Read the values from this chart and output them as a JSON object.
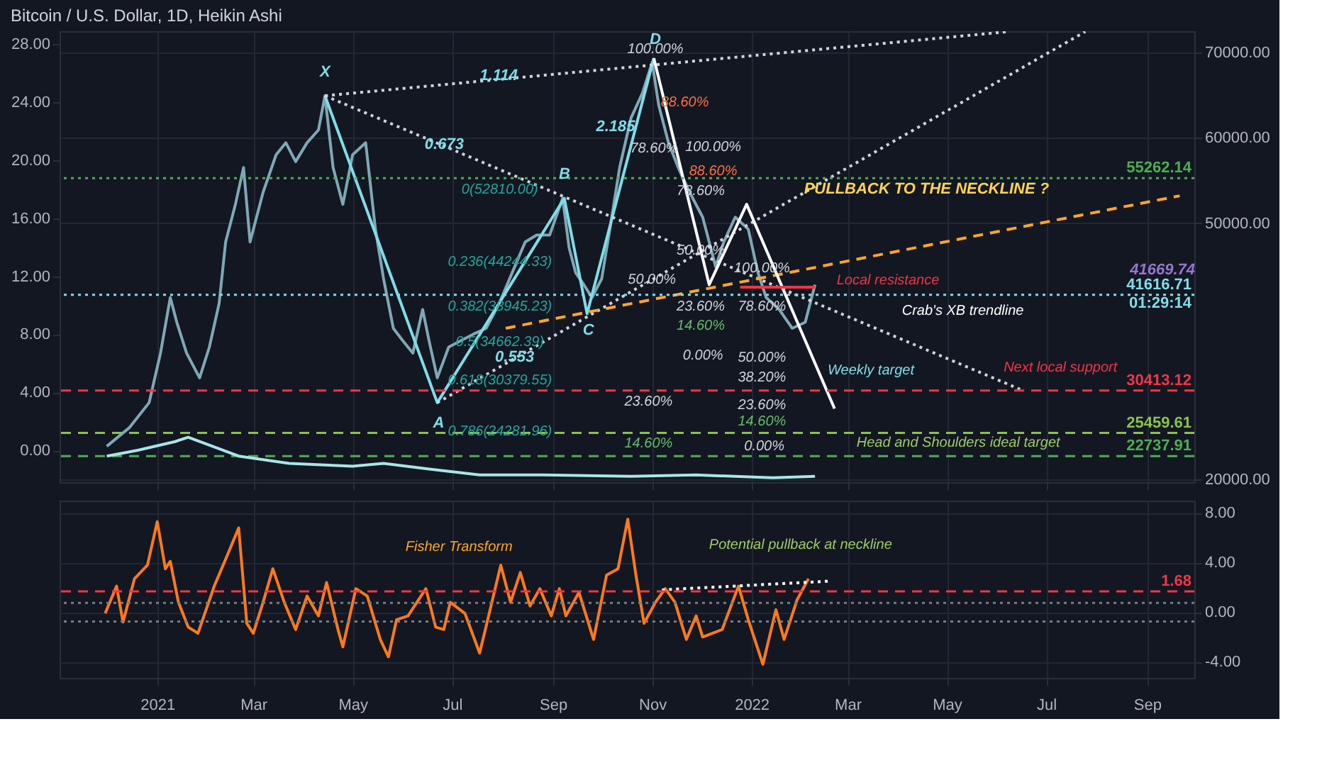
{
  "chart_data": [
    {
      "type": "line",
      "title": "Bitcoin / U.S. Dollar, 1D, Heikin Ashi",
      "grid": true,
      "tick_labels": "y",
      "xlim": [
        "2020-11-02",
        "2022-09-30"
      ],
      "xticks": [
        {
          "value": "2021-01-01",
          "label": null
        },
        {
          "value": "2021-03-01",
          "label": null
        },
        {
          "value": "2021-05-01",
          "label": null
        },
        {
          "value": "2021-07-01",
          "label": null
        },
        {
          "value": "2021-09-01",
          "label": null
        },
        {
          "value": "2021-11-01",
          "label": null
        },
        {
          "value": "2022-01-01",
          "label": null
        },
        {
          "value": "2022-03-01",
          "label": null
        },
        {
          "value": "2022-05-01",
          "label": null
        },
        {
          "value": "2022-07-01",
          "label": null
        },
        {
          "value": "2022-09-01",
          "label": null
        }
      ],
      "ylim": [
        19700,
        72450
      ],
      "yticks": [
        {
          "value": 20000,
          "label": "20000.00"
        },
        {
          "value": 50000,
          "label": "50000.00"
        },
        {
          "value": 60000,
          "label": "60000.00"
        },
        {
          "value": 70000,
          "label": "70000.00"
        }
      ],
      "y2lim": [
        -2.2,
        28.9
      ],
      "y2ticks": [
        {
          "value": 0,
          "label": "0.00"
        },
        {
          "value": 4,
          "label": "4.00"
        },
        {
          "value": 8,
          "label": "8.00"
        },
        {
          "value": 12,
          "label": "12.00"
        },
        {
          "value": 16,
          "label": "16.00"
        },
        {
          "value": 20,
          "label": "20.00"
        },
        {
          "value": 24,
          "label": "24.00"
        },
        {
          "value": 28,
          "label": "28.00"
        }
      ],
      "series": [
        {
          "color": "#7fa8b5",
          "line_style": "solid",
          "x": [
            "2020-12-01",
            "2020-12-15",
            "2020-12-27",
            "2021-01-03",
            "2021-01-09",
            "2021-01-13",
            "2021-01-19",
            "2021-01-27",
            "2021-02-02",
            "2021-02-08",
            "2021-02-12",
            "2021-02-18",
            "2021-02-23",
            "2021-02-27",
            "2021-03-07",
            "2021-03-15",
            "2021-03-21",
            "2021-03-27",
            "2021-04-03",
            "2021-04-10",
            "2021-04-14",
            "2021-04-19",
            "2021-04-25",
            "2021-05-01",
            "2021-05-09",
            "2021-05-15",
            "2021-05-20",
            "2021-05-26",
            "2021-06-01",
            "2021-06-07",
            "2021-06-13",
            "2021-06-17",
            "2021-06-22",
            "2021-06-29",
            "2021-07-06",
            "2021-07-14",
            "2021-07-22",
            "2021-07-30",
            "2021-08-07",
            "2021-08-15",
            "2021-08-22",
            "2021-08-30",
            "2021-09-07",
            "2021-09-11",
            "2021-09-15",
            "2021-09-20",
            "2021-09-25",
            "2021-10-01",
            "2021-10-06",
            "2021-10-12",
            "2021-10-19",
            "2021-10-26",
            "2021-11-01",
            "2021-11-05",
            "2021-11-11",
            "2021-11-17",
            "2021-11-24",
            "2021-12-02",
            "2021-12-10",
            "2021-12-15",
            "2021-12-22",
            "2021-12-30",
            "2022-01-05",
            "2022-01-10",
            "2022-01-18",
            "2022-01-26",
            "2022-02-03",
            "2022-02-09"
          ],
          "values": [
            23900,
            26100,
            29000,
            34800,
            41300,
            38400,
            34800,
            31900,
            35500,
            40600,
            47800,
            52200,
            56500,
            47800,
            53600,
            58000,
            59400,
            57200,
            59400,
            60900,
            64900,
            56500,
            52200,
            58000,
            59400,
            49300,
            43500,
            37700,
            36200,
            34800,
            39900,
            36200,
            31900,
            35500,
            36200,
            37000,
            37700,
            40600,
            44200,
            47800,
            48600,
            48600,
            52900,
            47100,
            44200,
            42800,
            41300,
            43500,
            49300,
            56500,
            62300,
            65200,
            68800,
            63800,
            59400,
            56500,
            53600,
            50700,
            44900,
            47800,
            50700,
            49300,
            44200,
            41300,
            39900,
            37700,
            38400,
            42800
          ]
        },
        {
          "axis": "y2",
          "color": "#a8e6e6",
          "line_style": "solid",
          "x": [
            "2020-12-01",
            "2020-12-20",
            "2021-01-12",
            "2021-01-20",
            "2021-02-01",
            "2021-02-20",
            "2021-03-23",
            "2021-05-01",
            "2021-05-20",
            "2021-06-17",
            "2021-07-18",
            "2021-08-26",
            "2021-10-19",
            "2021-11-28",
            "2022-01-14",
            "2022-02-09"
          ],
          "values": [
            -0.4,
            0,
            0.6,
            0.9,
            0.4,
            -0.4,
            -0.9,
            -1.1,
            -0.9,
            -1.3,
            -1.7,
            -1.7,
            -1.8,
            -1.7,
            -1.9,
            -1.8
          ]
        },
        {
          "color": "#7fdde8",
          "line_style": "solid",
          "x": [
            "2021-04-14",
            "2021-06-22",
            "2021-09-08",
            "2021-09-22",
            "2021-11-02"
          ],
          "values": [
            64900,
            29000,
            52900,
            39400,
            69300
          ]
        },
        {
          "color": "#d1d4dc",
          "line_style": "dotted",
          "x": [
            "2021-04-14",
            "2022-06-08"
          ],
          "values": [
            64900,
            72400
          ]
        },
        {
          "color": "#d1d4dc",
          "line_style": "dotted",
          "x": [
            "2021-04-14",
            "2022-06-17"
          ],
          "values": [
            64900,
            30400
          ]
        },
        {
          "color": "#d1d4dc",
          "line_style": "dotted",
          "x": [
            "2021-06-22",
            "2022-07-25"
          ],
          "values": [
            29000,
            72400
          ]
        },
        {
          "color": "#ffa726",
          "line_style": "dashed",
          "x": [
            "2021-08-03",
            "2022-09-21"
          ],
          "values": [
            37700,
            53200
          ]
        },
        {
          "color": "#ffffff",
          "line_style": "solid",
          "x": [
            "2021-11-02",
            "2021-12-06",
            "2021-12-29",
            "2022-02-21"
          ],
          "values": [
            69300,
            42800,
            52200,
            28300
          ]
        },
        {
          "color": "#f23645",
          "line_style": "solid",
          "x": [
            "2021-12-25",
            "2022-02-09"
          ],
          "values": [
            42500,
            42500
          ]
        }
      ],
      "ref_lines": [
        {
          "axis": "y",
          "value": 55262.14,
          "label": "55262.14",
          "color": "#4caf50",
          "line_style": "dotted"
        },
        {
          "axis": "y",
          "value": 41616.71,
          "label": "41616.71\n01:29:14",
          "color": "#80deea",
          "line_style": "dotted"
        },
        {
          "axis": "y",
          "value": 30413.12,
          "label": "30413.12",
          "color": "#f23645",
          "line_style": "dashed"
        },
        {
          "axis": "y",
          "value": 25459.61,
          "label": "25459.61",
          "color": "#8bc34a",
          "line_style": "dashed"
        },
        {
          "axis": "y",
          "value": 22737.91,
          "label": "22737.91",
          "color": "#4caf50",
          "line_style": "dashed"
        }
      ],
      "annotations": [
        "41669.74",
        "X",
        "A",
        "B",
        "C",
        "D",
        "1.114",
        "0.673",
        "2.185",
        "0.553",
        "0(52810.00)",
        "0.236(44244.33)",
        "0.382(38945.23)",
        "0.5(34662.39)",
        "0.618(30379.55)",
        "0.786(24281.96)",
        "100.00%",
        "88.60%",
        "78.60%",
        "50.00%",
        "23.60%",
        "14.60%",
        "100.00%",
        "88.60%",
        "78.60%",
        "50.00%",
        "23.60%",
        "14.60%",
        "0.00%",
        "100.00%",
        "78.60%",
        "50.00%",
        "38.20%",
        "23.60%",
        "14.60%",
        "0.00%",
        "PULLBACK TO THE NECKLINE ?",
        "Local resistance",
        "Crab's XB trendline",
        "Weekly target",
        "Next local support",
        "Head and Shoulders ideal target"
      ]
    },
    {
      "type": "line",
      "grid": true,
      "xlim": [
        "2020-11-02",
        "2022-09-30"
      ],
      "xticks": [
        {
          "value": "2021-01-01",
          "label": "2021"
        },
        {
          "value": "2021-03-01",
          "label": "Mar"
        },
        {
          "value": "2021-05-01",
          "label": "May"
        },
        {
          "value": "2021-07-01",
          "label": "Jul"
        },
        {
          "value": "2021-09-01",
          "label": "Sep"
        },
        {
          "value": "2021-11-01",
          "label": "Nov"
        },
        {
          "value": "2022-01-01",
          "label": "2022"
        },
        {
          "value": "2022-03-01",
          "label": "Mar"
        },
        {
          "value": "2022-05-01",
          "label": "May"
        },
        {
          "value": "2022-07-01",
          "label": "Jul"
        },
        {
          "value": "2022-09-01",
          "label": "Sep"
        }
      ],
      "ylim": [
        -5.3,
        9.0
      ],
      "yticks": [
        {
          "value": -4,
          "label": "-4.00"
        },
        {
          "value": 0,
          "label": "0.00"
        },
        {
          "value": 4,
          "label": "4.00"
        },
        {
          "value": 8,
          "label": "8.00"
        }
      ],
      "series": [
        {
          "color": "#ff7a1a",
          "line_style": "solid",
          "x": [
            "2020-11-30",
            "2020-12-07",
            "2020-12-11",
            "2020-12-18",
            "2020-12-26",
            "2021-01-01",
            "2021-01-06",
            "2021-01-09",
            "2021-01-14",
            "2021-01-20",
            "2021-01-26",
            "2021-02-05",
            "2021-02-14",
            "2021-02-20",
            "2021-02-25",
            "2021-03-01",
            "2021-03-07",
            "2021-03-13",
            "2021-03-20",
            "2021-03-27",
            "2021-04-03",
            "2021-04-10",
            "2021-04-15",
            "2021-04-22",
            "2021-04-25",
            "2021-05-03",
            "2021-05-10",
            "2021-05-18",
            "2021-05-23",
            "2021-05-28",
            "2021-06-04",
            "2021-06-15",
            "2021-06-21",
            "2021-06-26",
            "2021-06-30",
            "2021-07-09",
            "2021-07-18",
            "2021-07-23",
            "2021-07-31",
            "2021-08-06",
            "2021-08-12",
            "2021-08-18",
            "2021-08-24",
            "2021-08-31",
            "2021-09-05",
            "2021-09-09",
            "2021-09-17",
            "2021-09-26",
            "2021-10-04",
            "2021-10-11",
            "2021-10-17",
            "2021-10-22",
            "2021-10-27",
            "2021-11-03",
            "2021-11-09",
            "2021-11-15",
            "2021-11-22",
            "2021-11-28",
            "2021-12-02",
            "2021-12-08",
            "2021-12-14",
            "2021-12-24",
            "2021-12-30",
            "2022-01-08",
            "2022-01-16",
            "2022-01-21",
            "2022-01-29",
            "2022-02-05"
          ],
          "values": [
            -0.1,
            2.1,
            -0.8,
            2.7,
            3.8,
            7.3,
            3.5,
            4.1,
            0.8,
            -1.2,
            -1.7,
            2.1,
            4.9,
            6.8,
            -0.9,
            -1.7,
            0.8,
            3.5,
            0.8,
            -1.4,
            1.3,
            -0.3,
            2.4,
            -1.4,
            -2.8,
            1.9,
            1.3,
            -2.2,
            -3.6,
            -0.6,
            -0.3,
            1.9,
            -1.2,
            -1.4,
            0.8,
            -0.1,
            -3.3,
            -0.6,
            3.8,
            0.8,
            3.2,
            0.5,
            1.9,
            -0.3,
            1.9,
            -0.3,
            1.6,
            -2.2,
            3.0,
            3.5,
            7.5,
            3.0,
            -0.9,
            0.8,
            1.9,
            0.8,
            -2.2,
            -0.3,
            -2.0,
            -1.7,
            -1.4,
            2.1,
            -0.6,
            -4.2,
            0.2,
            -2.2,
            1.0,
            2.7
          ]
        },
        {
          "color": "#ffffff",
          "line_style": "dotted",
          "x": [
            "2021-11-07",
            "2022-02-17"
          ],
          "values": [
            1.8,
            2.5
          ]
        }
      ],
      "ref_lines": [
        {
          "axis": "y",
          "value": 1.68,
          "label": "1.68",
          "color": "#f23645",
          "line_style": "dashed"
        },
        {
          "axis": "y",
          "value": 0.75,
          "color": "#787b86",
          "line_style": "dotted"
        },
        {
          "axis": "y",
          "value": -0.75,
          "color": "#787b86",
          "line_style": "dotted"
        }
      ],
      "annotations": [
        "Fisher Transform",
        "Potential pullback at neckline"
      ]
    }
  ]
}
